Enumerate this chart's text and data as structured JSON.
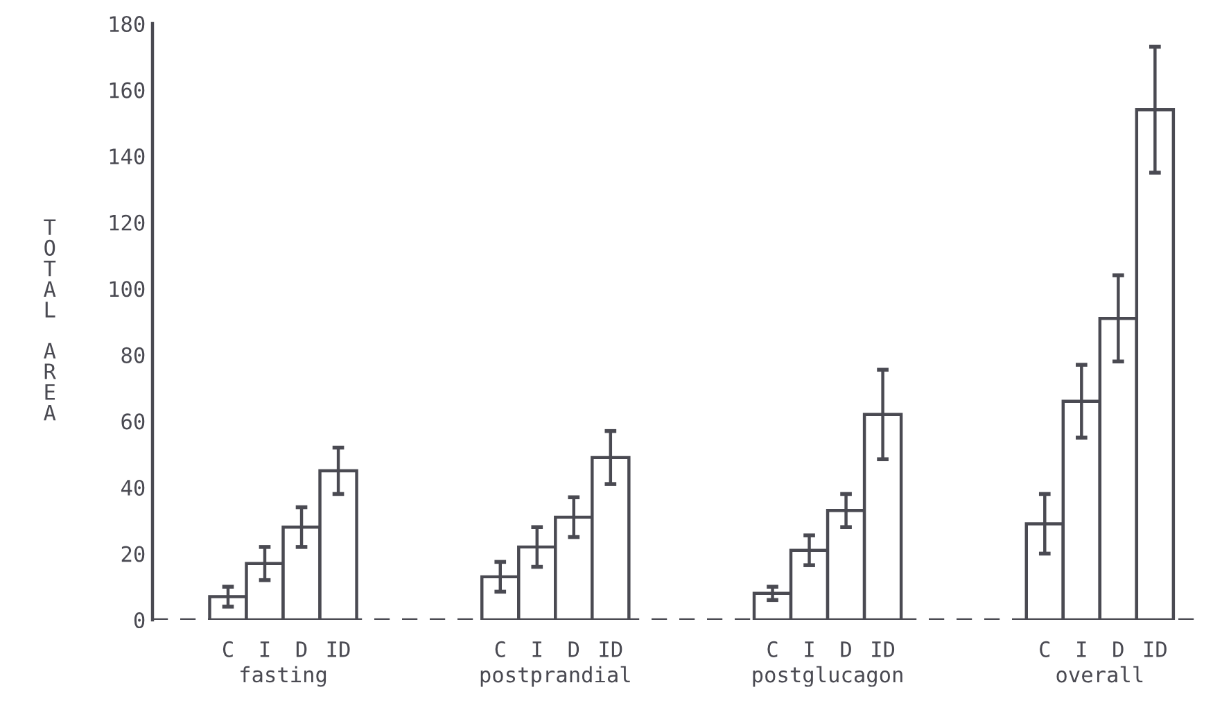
{
  "chart_data": {
    "type": "bar",
    "ylabel": "TOTAL AREA",
    "categories": [
      "fasting",
      "postprandial",
      "postglucagon",
      "overall"
    ],
    "series": [
      {
        "name": "C",
        "color": "#ffffff",
        "values": [
          7,
          13,
          8,
          29
        ],
        "errors": [
          3,
          4.5,
          2,
          9
        ]
      },
      {
        "name": "I",
        "color": "#ffffff",
        "values": [
          17,
          22,
          21,
          66
        ],
        "errors": [
          5,
          6,
          4.5,
          11
        ]
      },
      {
        "name": "D",
        "color": "#ffffff",
        "values": [
          28,
          31,
          33,
          91
        ],
        "errors": [
          6,
          6,
          5,
          13
        ]
      },
      {
        "name": "ID",
        "color": "#ffffff",
        "values": [
          45,
          49,
          62,
          154
        ],
        "errors": [
          7,
          8,
          13.5,
          19
        ]
      }
    ],
    "ylim": [
      0,
      180
    ],
    "yticks": [
      0,
      20,
      40,
      60,
      80,
      100,
      120,
      140,
      160,
      180
    ],
    "ref_lines": [
      {
        "axis": "y",
        "value": 0,
        "label": null,
        "color": "#4a4a52",
        "line_style": "dashed"
      }
    ],
    "grid": false,
    "legend": false
  }
}
